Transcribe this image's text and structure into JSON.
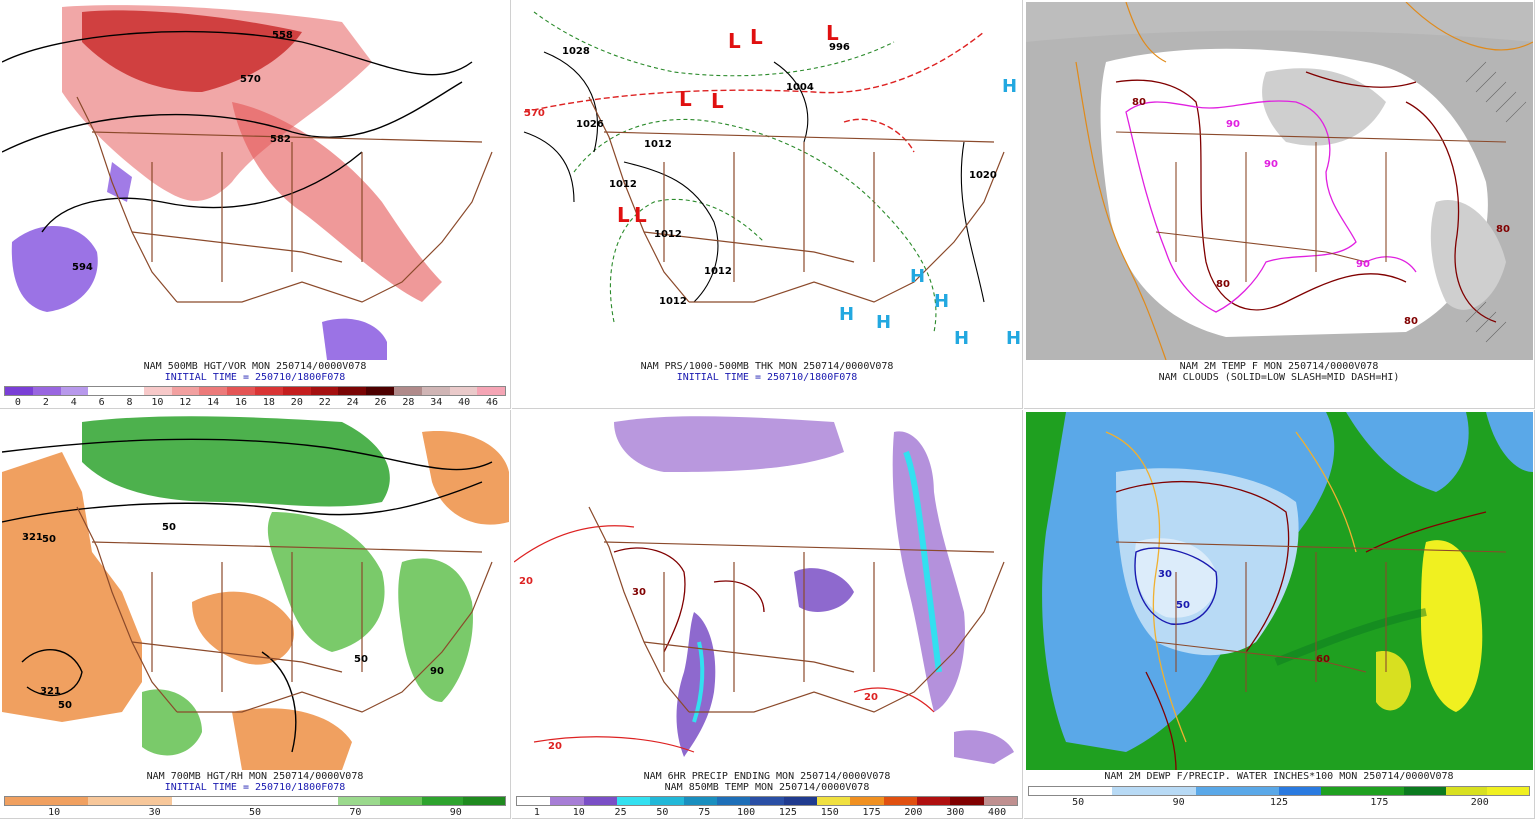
{
  "panels": [
    {
      "id": "p1",
      "caption": "NAM 500MB HGT/VOR MON 250714/0000V078",
      "init": "INITIAL TIME = 250710/1800F078",
      "colorbar": [
        "#7a3fd6",
        "#9966e0",
        "#b899ec",
        "#ffffff",
        "#ffffff",
        "#f7c9c9",
        "#f2a0a0",
        "#ec7a7a",
        "#e45555",
        "#d93535",
        "#c41e1e",
        "#a51010",
        "#7a0505",
        "#4d0000",
        "#b08a8a",
        "#d0b5b5",
        "#eacaca",
        "#f5a5b5"
      ],
      "ticks": [
        "0",
        "2",
        "4",
        "6",
        "8",
        "10",
        "12",
        "14",
        "16",
        "18",
        "20",
        "22",
        "24",
        "26",
        "28",
        "34",
        "40",
        "46"
      ],
      "labels": [
        "558",
        "570",
        "582",
        "594"
      ]
    },
    {
      "id": "p2",
      "caption": "NAM PRS/1000-500MB THK MON 250714/0000V078",
      "init": "INITIAL TIME = 250710/1800F078",
      "labels": [
        "1028",
        "1026",
        "1012",
        "1012",
        "1012",
        "1012",
        "1012",
        "1004",
        "996",
        "1020",
        "570"
      ],
      "lows": [
        "L",
        "L",
        "L",
        "L",
        "L",
        "L",
        "L"
      ],
      "highs": [
        "H",
        "H",
        "H",
        "H",
        "H",
        "H",
        "H"
      ]
    },
    {
      "id": "p3",
      "caption": "NAM 2M TEMP F MON 250714/0000V078",
      "init": "NAM CLOUDS (SOLID=LOW SLASH=MID DASH=HI)",
      "labels": [
        "80",
        "90",
        "90",
        "80",
        "90",
        "80",
        "80"
      ]
    },
    {
      "id": "p4",
      "caption": "NAM 700MB HGT/RH MON 250714/0000V078",
      "init": "INITIAL TIME = 250710/1800F078",
      "colorbar": [
        "#f0a060",
        "#f0a060",
        "#f7c79a",
        "#f7c79a",
        "#ffffff",
        "#ffffff",
        "#ffffff",
        "#ffffff",
        "#9bd98d",
        "#6cc45a",
        "#2ea32e",
        "#1f8a1f"
      ],
      "ticks": [
        "10",
        "30",
        "50",
        "70",
        "90"
      ],
      "labels": [
        "321",
        "50",
        "50",
        "50",
        "50",
        "90",
        "321"
      ]
    },
    {
      "id": "p5",
      "caption": "NAM 6HR PRECIP ENDING MON 250714/0000V078",
      "init": "NAM 850MB TEMP MON 250714/0000V078",
      "colorbar": [
        "#ffffff",
        "#a77ed6",
        "#7a4fc6",
        "#33e0f0",
        "#22b8d8",
        "#1a8fbf",
        "#1e6fb8",
        "#2a4fa5",
        "#203b8f",
        "#f0e040",
        "#f09020",
        "#e05010",
        "#b01010",
        "#800000",
        "#c09090"
      ],
      "ticks": [
        "1",
        "10",
        "25",
        "50",
        "75",
        "100",
        "125",
        "150",
        "175",
        "200",
        "300",
        "400"
      ],
      "labels": [
        "20",
        "30",
        "20",
        "20"
      ]
    },
    {
      "id": "p6",
      "caption": "NAM 2M DEWP F/PRECIP. WATER INCHES*100 MON 250714/0000V078",
      "init": "",
      "colorbar": [
        "#ffffff",
        "#ffffff",
        "#b8daf5",
        "#b8daf5",
        "#5aa8e8",
        "#5aa8e8",
        "#2a7ae0",
        "#1fa020",
        "#1fa020",
        "#0b7a1f",
        "#d8e020",
        "#f0f020"
      ],
      "ticks": [
        "50",
        "90",
        "125",
        "175",
        "200"
      ],
      "labels": [
        "30",
        "50",
        "60"
      ]
    }
  ]
}
